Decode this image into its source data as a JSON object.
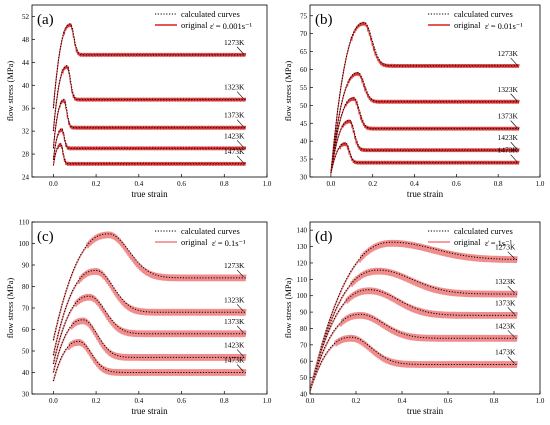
{
  "chart_data": [
    {
      "panel_label": "(a)",
      "type": "line",
      "xlabel": "true strain",
      "ylabel": "flow stress (MPa)",
      "xlim": [
        -0.1,
        1.0
      ],
      "ylim": [
        24,
        54
      ],
      "xticks": [
        0.0,
        0.2,
        0.4,
        0.6,
        0.8,
        1.0
      ],
      "yticks": [
        24,
        28,
        32,
        36,
        40,
        44,
        48,
        52
      ],
      "legend": [
        "calculated curves",
        "original"
      ],
      "rate_label": "ε̇ = 0.001s⁻¹",
      "curves": [
        {
          "temperature": "1273K",
          "start": 36,
          "peak": 50.5,
          "peak_strain": 0.08,
          "steady": 45.3,
          "width": 0.022
        },
        {
          "temperature": "1323K",
          "start": 32,
          "peak": 43.2,
          "peak_strain": 0.065,
          "steady": 37.5,
          "width": 0.02
        },
        {
          "temperature": "1373K",
          "start": 29,
          "peak": 37.3,
          "peak_strain": 0.05,
          "steady": 32.6,
          "width": 0.018
        },
        {
          "temperature": "1423K",
          "start": 27,
          "peak": 32.2,
          "peak_strain": 0.04,
          "steady": 29.0,
          "width": 0.015
        },
        {
          "temperature": "1473K",
          "start": 26,
          "peak": 29.6,
          "peak_strain": 0.035,
          "steady": 26.3,
          "width": 0.014
        }
      ]
    },
    {
      "panel_label": "(b)",
      "type": "line",
      "xlabel": "true strain",
      "ylabel": "flow stress (MPa)",
      "xlim": [
        -0.1,
        1.0
      ],
      "ylim": [
        30,
        78
      ],
      "xticks": [
        0.0,
        0.2,
        0.4,
        0.6,
        0.8,
        1.0
      ],
      "yticks": [
        30,
        35,
        40,
        45,
        50,
        55,
        60,
        65,
        70,
        75
      ],
      "legend": [
        "calculated curves",
        "original"
      ],
      "rate_label": "ε̇ = 0.01s⁻¹",
      "curves": [
        {
          "temperature": "1273K",
          "start": 31,
          "peak": 72.8,
          "peak_strain": 0.16,
          "steady": 61.0,
          "width": 0.05
        },
        {
          "temperature": "1323K",
          "start": 31,
          "peak": 58.8,
          "peak_strain": 0.13,
          "steady": 51.0,
          "width": 0.04
        },
        {
          "temperature": "1373K",
          "start": 31,
          "peak": 51.8,
          "peak_strain": 0.11,
          "steady": 43.5,
          "width": 0.035
        },
        {
          "temperature": "1423K",
          "start": 31,
          "peak": 45.5,
          "peak_strain": 0.09,
          "steady": 37.5,
          "width": 0.03
        },
        {
          "temperature": "1473K",
          "start": 31,
          "peak": 39.2,
          "peak_strain": 0.07,
          "steady": 34.0,
          "width": 0.025
        }
      ]
    },
    {
      "panel_label": "(c)",
      "type": "line",
      "xlabel": "true strain",
      "ylabel": "flow stress (MPa)",
      "xlim": [
        -0.1,
        1.0
      ],
      "ylim": [
        30,
        110
      ],
      "xticks": [
        0.0,
        0.2,
        0.4,
        0.6,
        0.8,
        1.0
      ],
      "yticks": [
        30,
        40,
        50,
        60,
        70,
        80,
        90,
        100,
        110
      ],
      "legend": [
        "calculated curves",
        "original"
      ],
      "rate_label": "ε̇ = 0.1s⁻¹",
      "curves": [
        {
          "temperature": "1273K",
          "start": 55,
          "peak": 104,
          "peak_strain": 0.26,
          "steady": 84,
          "width": 0.13
        },
        {
          "temperature": "1323K",
          "start": 48,
          "peak": 87,
          "peak_strain": 0.2,
          "steady": 68,
          "width": 0.11
        },
        {
          "temperature": "1373K",
          "start": 44,
          "peak": 75,
          "peak_strain": 0.17,
          "steady": 58,
          "width": 0.1
        },
        {
          "temperature": "1423K",
          "start": 40,
          "peak": 64,
          "peak_strain": 0.14,
          "steady": 47,
          "width": 0.09
        },
        {
          "temperature": "1473K",
          "start": 36,
          "peak": 54,
          "peak_strain": 0.12,
          "steady": 40,
          "width": 0.08
        }
      ]
    },
    {
      "panel_label": "(d)",
      "type": "line",
      "xlabel": "true strain",
      "ylabel": "flow stress (MPa)",
      "xlim": [
        0.0,
        1.0
      ],
      "ylim": [
        40,
        145
      ],
      "xticks": [
        0.0,
        0.2,
        0.4,
        0.6,
        0.8,
        1.0
      ],
      "yticks": [
        40,
        50,
        60,
        70,
        80,
        90,
        100,
        110,
        120,
        130,
        140
      ],
      "legend": [
        "calculated curves",
        "original"
      ],
      "rate_label": "ε̇ = 1s⁻¹",
      "curves": [
        {
          "temperature": "1273K",
          "start": 42,
          "peak": 132,
          "peak_strain": 0.36,
          "steady": 122,
          "width": 0.25
        },
        {
          "temperature": "1323K",
          "start": 42,
          "peak": 115,
          "peak_strain": 0.3,
          "steady": 101,
          "width": 0.2
        },
        {
          "temperature": "1373K",
          "start": 42,
          "peak": 103,
          "peak_strain": 0.26,
          "steady": 88,
          "width": 0.17
        },
        {
          "temperature": "1423K",
          "start": 42,
          "peak": 88,
          "peak_strain": 0.22,
          "steady": 74,
          "width": 0.14
        },
        {
          "temperature": "1473K",
          "start": 42,
          "peak": 74,
          "peak_strain": 0.18,
          "steady": 58,
          "width": 0.12
        }
      ]
    }
  ]
}
